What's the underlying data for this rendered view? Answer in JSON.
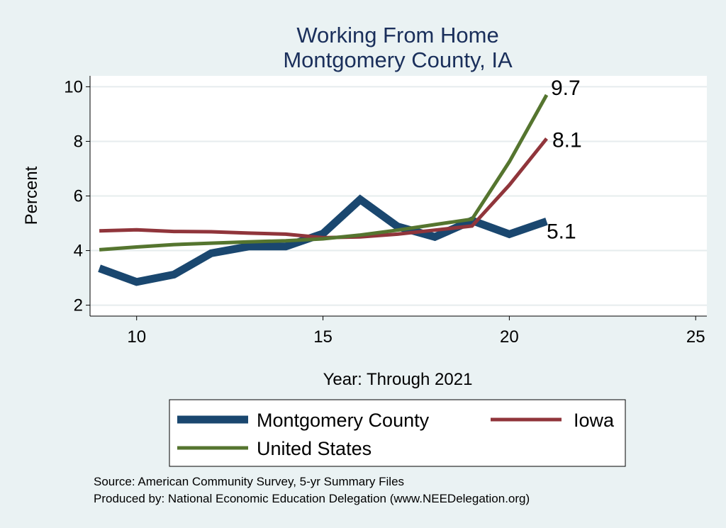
{
  "chart_data": {
    "type": "line",
    "title": [
      "Working From Home",
      "Montgomery County, IA"
    ],
    "xlabel": "Year: Through 2021",
    "ylabel": "Percent",
    "xlim": [
      8.75,
      25.3
    ],
    "ylim": [
      1.6,
      10.4
    ],
    "xticks": [
      10,
      15,
      20,
      25
    ],
    "yticks": [
      2,
      4,
      6,
      8,
      10
    ],
    "grid": true,
    "legend_position": "bottom",
    "x": [
      9,
      10,
      11,
      12,
      13,
      14,
      15,
      16,
      17,
      18,
      19,
      20,
      21
    ],
    "series": [
      {
        "name": "Montgomery County",
        "color": "#1a476f",
        "values": [
          3.35,
          2.85,
          3.12,
          3.9,
          4.15,
          4.15,
          4.62,
          5.87,
          4.88,
          4.5,
          5.1,
          4.6,
          5.07
        ],
        "end_label": "5.1"
      },
      {
        "name": "Iowa",
        "color": "#90353b",
        "values": [
          4.72,
          4.76,
          4.7,
          4.69,
          4.64,
          4.6,
          4.47,
          4.5,
          4.6,
          4.75,
          4.9,
          6.4,
          8.1
        ],
        "end_label": "8.1"
      },
      {
        "name": "United States",
        "color": "#55752f",
        "values": [
          4.03,
          4.13,
          4.22,
          4.27,
          4.32,
          4.36,
          4.43,
          4.57,
          4.75,
          4.95,
          5.15,
          7.25,
          9.7
        ],
        "end_label": "9.7"
      }
    ]
  },
  "footer": {
    "source": "Source: American Community Survey, 5-yr Summary Files",
    "produced": "Produced by: National Economic Education Delegation (www.NEEDelegation.org)"
  }
}
